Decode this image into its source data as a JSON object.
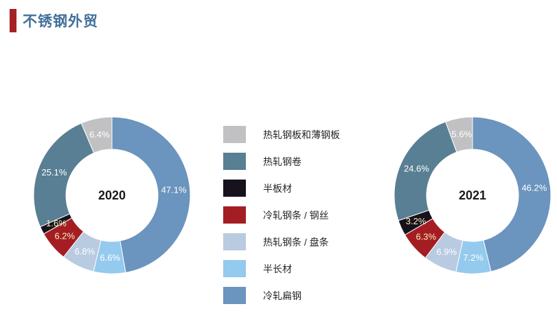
{
  "page": {
    "background": "#FFFFFF"
  },
  "header": {
    "title": "不锈钢外贸",
    "accent_bar_color": "#A42126",
    "title_color": "#40709A"
  },
  "legend": {
    "text_color": "#262626",
    "items": [
      {
        "label": "热轧钢板和薄钢板",
        "color": "#C1C1C3"
      },
      {
        "label": "热轧钢卷",
        "color": "#587F93"
      },
      {
        "label": "半板材",
        "color": "#17121C"
      },
      {
        "label": "冷轧钢条 / 钢丝",
        "color": "#A41D22"
      },
      {
        "label": "热轧钢条 / 盘条",
        "color": "#B9CBE0"
      },
      {
        "label": "半长材",
        "color": "#93CAEE"
      },
      {
        "label": "冷轧扁钢",
        "color": "#6B94BE"
      }
    ]
  },
  "chart_data": {
    "type": "pie",
    "subtype": "donut",
    "title": "不锈钢外贸",
    "legend_position": "center-between-charts",
    "categories": [
      "热轧钢板和薄钢板",
      "热轧钢卷",
      "半板材",
      "冷轧钢条 / 钢丝",
      "热轧钢条 / 盘条",
      "半长材",
      "冷轧扁钢"
    ],
    "colors": [
      "#C1C1C3",
      "#587F93",
      "#17121C",
      "#A41D22",
      "#B9CBE0",
      "#93CAEE",
      "#6B94BE"
    ],
    "value_label_colors": [
      "#FFFFFF",
      "#FFFFFF",
      "#F7F0C0",
      "#F7F0C0",
      "#FFFFFF",
      "#FFFFFF",
      "#FFFFFF"
    ],
    "center_label_color": "#1A1A1A",
    "slice_border_color": "#FFFFFF",
    "charts": [
      {
        "center_label": "2020",
        "values": [
          6.4,
          25.1,
          1.6,
          6.2,
          6.8,
          6.6,
          47.1
        ],
        "value_labels": [
          "6.4%",
          "25.1%",
          "1.6%",
          "6.2%",
          "6.8%",
          "6.6%",
          "47.1%"
        ]
      },
      {
        "center_label": "2021",
        "values": [
          5.6,
          24.6,
          3.2,
          6.3,
          6.9,
          7.2,
          46.2
        ],
        "value_labels": [
          "5.6%",
          "24.6%",
          "3.2%",
          "6.3%",
          "6.9%",
          "7.2%",
          "46.2%"
        ]
      }
    ],
    "layout": {
      "start_angle_deg": 0,
      "direction": "clockwise",
      "draw_order": "categories-reversed",
      "outer_radius": 114,
      "inner_radius": 67,
      "label_radius": 90.5
    }
  }
}
